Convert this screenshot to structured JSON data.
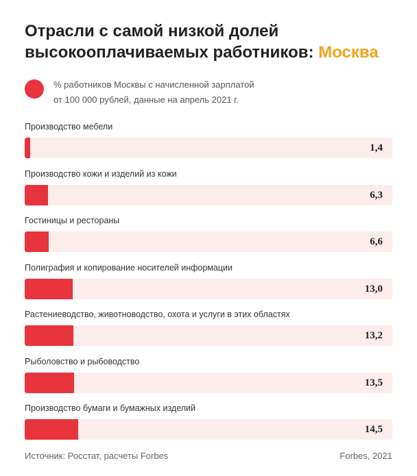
{
  "title": {
    "line1": "Отрасли с самой низкой долей",
    "line2": "высокооплачиваемых работников:",
    "accent": "Москва"
  },
  "legend": {
    "line1": "% работников Москвы с начисленной зарплатой",
    "line2": "от 100 000 рублей, данные на апрель 2021 г."
  },
  "colors": {
    "bar": "#e8343d",
    "track": "#fdecec",
    "accent": "#f5a31a"
  },
  "chart_data": {
    "type": "bar",
    "orientation": "horizontal",
    "categories": [
      "Производство мебели",
      "Производство кожи и изделий из кожи",
      "Гостиницы и рестораны",
      "Полиграфия и копирование носителей информации",
      "Растениеводство, животноводство, охота и услуги в этих областях",
      "Рыболовство и рыбоводство",
      "Производство бумаги и бумажных изделий"
    ],
    "values": [
      1.4,
      6.3,
      6.6,
      13.0,
      13.2,
      13.5,
      14.5
    ],
    "value_labels": [
      "1,4",
      "6,3",
      "6,6",
      "13,0",
      "13,2",
      "13,5",
      "14,5"
    ],
    "xlim": [
      0,
      100
    ],
    "grid": false,
    "legend_position": "top-left"
  },
  "footer": {
    "source": "Источник: Росстат, расчеты Forbes",
    "credit": "Forbes, 2021"
  }
}
